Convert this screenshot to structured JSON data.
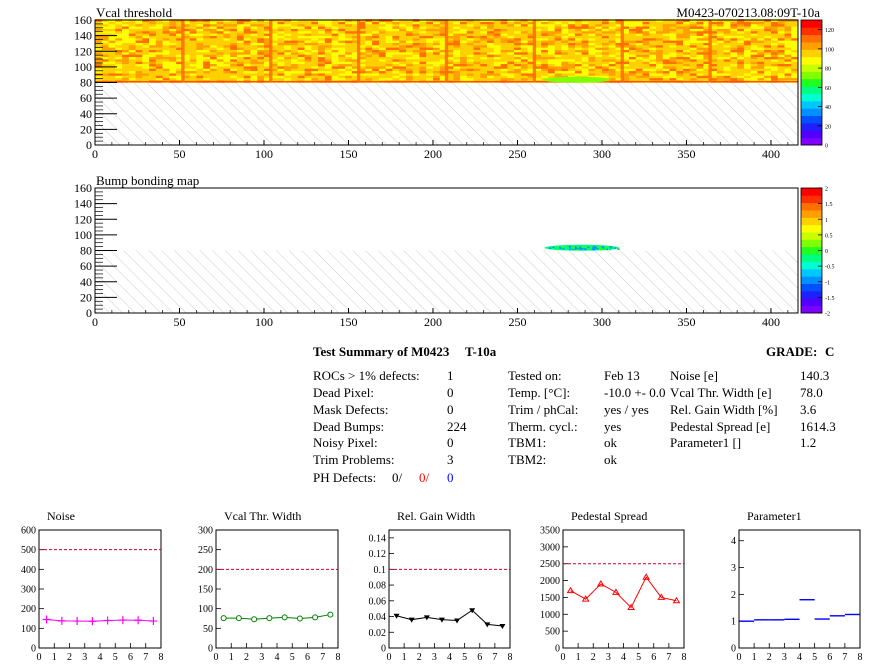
{
  "maps": [
    {
      "title": "Vcal threshold",
      "module_label": "M0423-070213.08:09T-10a",
      "x_ticks": [
        "0",
        "50",
        "100",
        "150",
        "200",
        "250",
        "300",
        "350",
        "400"
      ],
      "y_ticks": [
        "0",
        "20",
        "40",
        "60",
        "80",
        "100",
        "120",
        "140",
        "160"
      ],
      "palette_labels": [
        "0",
        "20",
        "40",
        "60",
        "80",
        "100",
        "120"
      ],
      "xlim": [
        0,
        416
      ],
      "ylim": [
        0,
        160
      ],
      "zlim": [
        0,
        130
      ]
    },
    {
      "title": "Bump bonding map",
      "x_ticks": [
        "0",
        "50",
        "100",
        "150",
        "200",
        "250",
        "300",
        "350",
        "400"
      ],
      "y_ticks": [
        "0",
        "20",
        "40",
        "60",
        "80",
        "100",
        "120",
        "140",
        "160"
      ],
      "palette_labels": [
        "-2",
        "-1.5",
        "-1",
        "-0.5",
        "0",
        "0.5",
        "1",
        "1.5",
        "2"
      ],
      "xlim": [
        0,
        416
      ],
      "ylim": [
        0,
        160
      ],
      "zlim": [
        -2,
        2
      ]
    }
  ],
  "summary": {
    "title": "Test Summary of M0423",
    "temp_label": "T-10a",
    "grade_label": "GRADE:",
    "grade": "C",
    "col1": [
      {
        "label": "ROCs > 1% defects:",
        "value": "1"
      },
      {
        "label": "Dead Pixel:",
        "value": "0"
      },
      {
        "label": "Mask Defects:",
        "value": "0"
      },
      {
        "label": "Dead Bumps:",
        "value": "224"
      },
      {
        "label": "Noisy Pixel:",
        "value": "0"
      },
      {
        "label": "Trim Problems:",
        "value": "3"
      }
    ],
    "ph_defects": {
      "label": "PH Defects:",
      "v1": "0/",
      "v2": "0/",
      "v3": "0"
    },
    "col2": [
      {
        "label": "Tested on:",
        "value": "Feb 13"
      },
      {
        "label": "Temp. [°C]:",
        "value": "-10.0 +- 0.0"
      },
      {
        "label": "Trim / phCal:",
        "value": "yes / yes"
      },
      {
        "label": "Therm. cycl.:",
        "value": "yes"
      },
      {
        "label": "TBM1:",
        "value": "ok"
      },
      {
        "label": "TBM2:",
        "value": "ok"
      }
    ],
    "col3": [
      {
        "label": "Noise [e]",
        "value": "140.3"
      },
      {
        "label": "Vcal Thr. Width [e]",
        "value": "78.0"
      },
      {
        "label": "Rel. Gain Width [%]",
        "value": "3.6"
      },
      {
        "label": "Pedestal Spread [e]",
        "value": "1614.3"
      },
      {
        "label": "Parameter1 []",
        "value": "1.2"
      }
    ]
  },
  "chart_data": [
    {
      "type": "line",
      "title": "Noise",
      "color": "#ff00ff",
      "marker": "plus",
      "x": [
        0.5,
        1.5,
        2.5,
        3.5,
        4.5,
        5.5,
        6.5,
        7.5
      ],
      "values": [
        145,
        138,
        137,
        136,
        140,
        142,
        141,
        137
      ],
      "ylim": [
        0,
        600
      ],
      "threshold": 500,
      "y_ticks": [
        "0",
        "100",
        "200",
        "300",
        "400",
        "500",
        "600"
      ],
      "x_ticks": [
        "0",
        "1",
        "2",
        "3",
        "4",
        "5",
        "6",
        "7",
        "8"
      ]
    },
    {
      "type": "line",
      "title": "Vcal Thr. Width",
      "color": "#008000",
      "marker": "circle",
      "x": [
        0.5,
        1.5,
        2.5,
        3.5,
        4.5,
        5.5,
        6.5,
        7.5
      ],
      "values": [
        76,
        76,
        73,
        76,
        78,
        75,
        78,
        85
      ],
      "ylim": [
        0,
        300
      ],
      "threshold": 200,
      "y_ticks": [
        "0",
        "50",
        "100",
        "150",
        "200",
        "250",
        "300"
      ],
      "x_ticks": [
        "0",
        "1",
        "2",
        "3",
        "4",
        "5",
        "6",
        "7",
        "8"
      ]
    },
    {
      "type": "line",
      "title": "Rel. Gain Width",
      "color": "#000000",
      "marker": "triangle-down",
      "x": [
        0.5,
        1.5,
        2.5,
        3.5,
        4.5,
        5.5,
        6.5,
        7.5
      ],
      "values": [
        0.041,
        0.036,
        0.039,
        0.036,
        0.035,
        0.048,
        0.03,
        0.028
      ],
      "ylim": [
        0,
        0.15
      ],
      "threshold": 0.1,
      "y_ticks": [
        "0",
        "0.02",
        "0.04",
        "0.06",
        "0.08",
        "0.1",
        "0.12",
        "0.14"
      ],
      "x_ticks": [
        "0",
        "1",
        "2",
        "3",
        "4",
        "5",
        "6",
        "7",
        "8"
      ]
    },
    {
      "type": "line",
      "title": "Pedestal Spread",
      "color": "#ff0000",
      "marker": "triangle-up",
      "x": [
        0.5,
        1.5,
        2.5,
        3.5,
        4.5,
        5.5,
        6.5,
        7.5
      ],
      "values": [
        1700,
        1450,
        1900,
        1650,
        1200,
        2100,
        1500,
        1400
      ],
      "ylim": [
        0,
        3500
      ],
      "threshold": 2500,
      "y_ticks": [
        "0",
        "500",
        "1000",
        "1500",
        "2000",
        "2500",
        "3000",
        "3500"
      ],
      "x_ticks": [
        "0",
        "1",
        "2",
        "3",
        "4",
        "5",
        "6",
        "7",
        "8"
      ]
    },
    {
      "type": "scatter",
      "title": "Parameter1",
      "color": "#0000ff",
      "marker": "hline",
      "x": [
        0.5,
        1.5,
        2.5,
        3.5,
        4.5,
        5.5,
        6.5,
        7.5
      ],
      "values": [
        1.0,
        1.05,
        1.05,
        1.07,
        1.8,
        1.08,
        1.2,
        1.25
      ],
      "ylim": [
        0,
        4.4
      ],
      "y_ticks": [
        "0",
        "1",
        "2",
        "3",
        "4"
      ],
      "x_ticks": [
        "0",
        "1",
        "2",
        "3",
        "4",
        "5",
        "6",
        "7",
        "8"
      ]
    }
  ]
}
